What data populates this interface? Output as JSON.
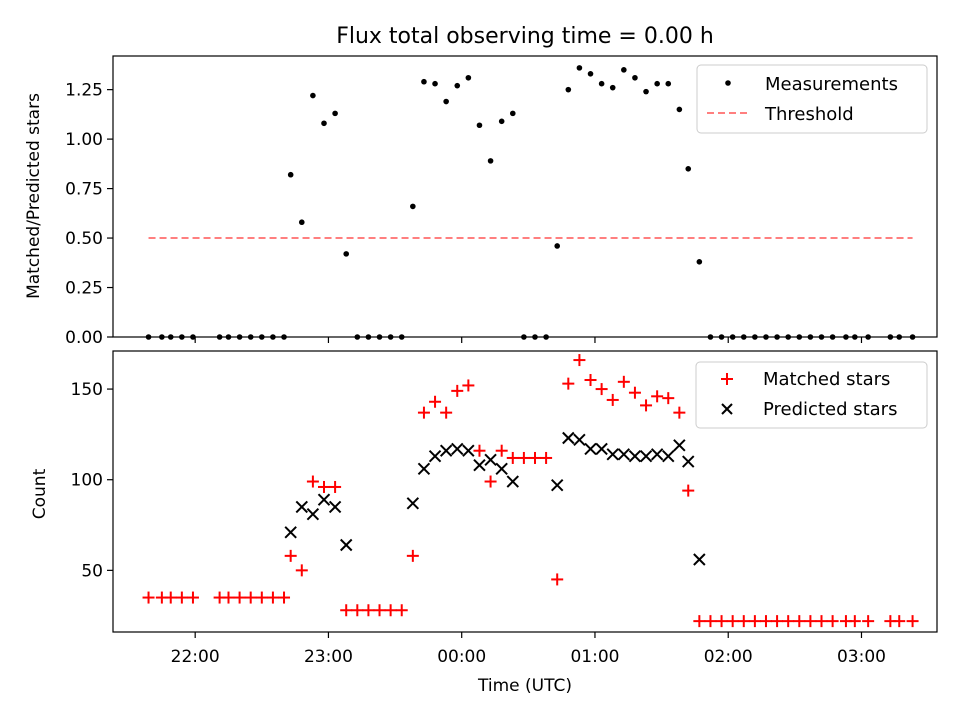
{
  "figure": {
    "title": "Flux total observing time = 0.00 h",
    "xlabel": "Time (UTC)",
    "x_ticks": [
      {
        "t": 0,
        "label": "22:00"
      },
      {
        "t": 60,
        "label": "23:00"
      },
      {
        "t": 120,
        "label": "00:00"
      },
      {
        "t": 180,
        "label": "01:00"
      },
      {
        "t": 240,
        "label": "02:00"
      },
      {
        "t": 300,
        "label": "03:00"
      }
    ],
    "xlim": [
      -37,
      334
    ]
  },
  "chart_data": [
    {
      "type": "scatter",
      "title": "Flux total observing time = 0.00 h",
      "ylabel": "Matched/Predicted stars",
      "ylim": [
        0,
        1.42
      ],
      "y_ticks": [
        0.0,
        0.25,
        0.5,
        0.75,
        1.0,
        1.25
      ],
      "y_tick_labels": [
        "0.00",
        "0.25",
        "0.50",
        "0.75",
        "1.00",
        "1.25"
      ],
      "legend": {
        "position": "top-right",
        "entries": [
          "Measurements",
          "Threshold"
        ]
      },
      "series": [
        {
          "name": "Measurements",
          "color": "#000000",
          "marker": "dot",
          "x": [
            -21,
            -15,
            -11,
            -6,
            -1,
            11,
            15,
            20,
            25,
            30,
            35,
            40,
            43,
            48,
            53,
            58,
            63,
            68,
            73,
            78,
            83,
            88,
            93,
            98,
            103,
            108,
            113,
            118,
            123,
            128,
            133,
            138,
            143,
            148,
            153,
            158,
            163,
            168,
            173,
            178,
            183,
            188,
            193,
            198,
            203,
            208,
            213,
            218,
            222,
            227,
            232,
            237,
            242,
            247,
            252,
            257,
            262,
            267,
            272,
            277,
            282,
            287,
            293,
            297,
            303,
            313,
            317,
            323
          ],
          "y": [
            0,
            0,
            0,
            0,
            0,
            0,
            0,
            0,
            0,
            0,
            0,
            0,
            0.82,
            0.58,
            1.22,
            1.08,
            1.13,
            0.42,
            0,
            0,
            0,
            0,
            0,
            0.66,
            1.29,
            1.28,
            1.19,
            1.27,
            1.31,
            1.07,
            0.89,
            1.09,
            1.13,
            0,
            0,
            0,
            0.46,
            1.25,
            1.36,
            1.33,
            1.28,
            1.26,
            1.35,
            1.31,
            1.24,
            1.28,
            1.28,
            1.15,
            0.85,
            0.38,
            0,
            0,
            0,
            0,
            0,
            0,
            0,
            0,
            0,
            0,
            0,
            0,
            0,
            0,
            0,
            0,
            0,
            0
          ]
        },
        {
          "name": "Threshold",
          "color": "#ff7f7f",
          "style": "dashed",
          "x": [
            -21,
            323
          ],
          "y": [
            0.5,
            0.5
          ]
        }
      ]
    },
    {
      "type": "scatter",
      "ylabel": "Count",
      "ylim": [
        16,
        171
      ],
      "y_ticks": [
        50,
        100,
        150
      ],
      "y_tick_labels": [
        "50",
        "100",
        "150"
      ],
      "legend": {
        "position": "top-right",
        "entries": [
          "Matched stars",
          "Predicted stars"
        ]
      },
      "series": [
        {
          "name": "Matched stars",
          "color": "#ff0000",
          "marker": "plus",
          "x": [
            -21,
            -15,
            -11,
            -6,
            -1,
            11,
            15,
            20,
            25,
            30,
            35,
            40,
            43,
            48,
            53,
            58,
            63,
            68,
            73,
            78,
            83,
            88,
            93,
            98,
            103,
            108,
            113,
            118,
            123,
            128,
            133,
            138,
            143,
            148,
            153,
            158,
            163,
            168,
            173,
            178,
            183,
            188,
            193,
            198,
            203,
            208,
            213,
            218,
            222,
            227,
            232,
            237,
            242,
            247,
            252,
            257,
            262,
            267,
            272,
            277,
            282,
            287,
            293,
            297,
            303,
            313,
            317,
            323
          ],
          "y": [
            35,
            35,
            35,
            35,
            35,
            35,
            35,
            35,
            35,
            35,
            35,
            35,
            58,
            50,
            99,
            96,
            96,
            28,
            28,
            28,
            28,
            28,
            28,
            58,
            137,
            143,
            137,
            149,
            152,
            116,
            99,
            116,
            112,
            112,
            112,
            112,
            45,
            153,
            166,
            155,
            150,
            144,
            154,
            148,
            141,
            146,
            145,
            137,
            94,
            22,
            22,
            22,
            22,
            22,
            22,
            22,
            22,
            22,
            22,
            22,
            22,
            22,
            22,
            22,
            22,
            22,
            22,
            22
          ]
        },
        {
          "name": "Predicted stars",
          "color": "#000000",
          "marker": "x",
          "x": [
            43,
            48,
            53,
            58,
            63,
            68,
            98,
            103,
            108,
            113,
            118,
            123,
            128,
            133,
            138,
            143,
            163,
            168,
            173,
            178,
            183,
            188,
            193,
            198,
            203,
            208,
            213,
            218,
            222,
            227
          ],
          "y": [
            71,
            85,
            81,
            89,
            85,
            64,
            87,
            106,
            113,
            116,
            117,
            116,
            108,
            111,
            106,
            99,
            97,
            123,
            122,
            117,
            117,
            114,
            114,
            113,
            113,
            114,
            113,
            119,
            110,
            56
          ]
        }
      ]
    }
  ]
}
